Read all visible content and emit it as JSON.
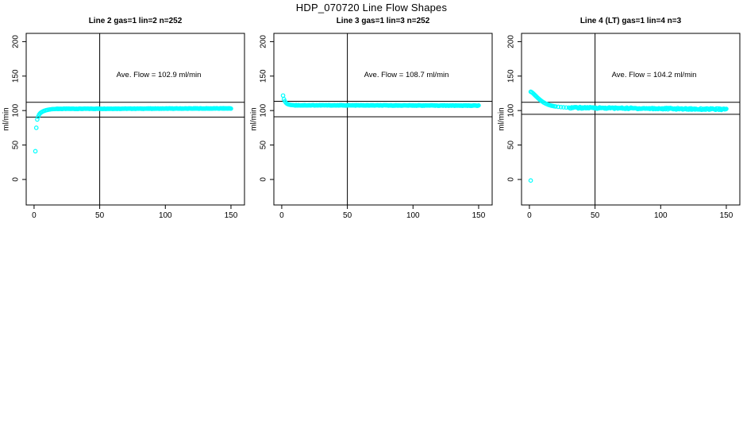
{
  "chart_data": {
    "type": "scatter",
    "title": "HDP_070720  Line Flow Shapes",
    "ylabel": "ml/min",
    "point_color": "#00FFFF",
    "axis_color": "#000000",
    "background": "#ffffff",
    "x_ticks": [
      0,
      50,
      100,
      150
    ],
    "y_ticks": [
      0,
      50,
      100,
      150,
      200
    ],
    "x_range": [
      -6,
      160.3
    ],
    "y_range": [
      -37,
      212
    ],
    "vline_x": 50,
    "legend": "none",
    "grid": "off",
    "panels": [
      {
        "title": "Line 2 gas=1 lin=2 n=252",
        "annotation": "Ave. Flow =  102.9  ml/min",
        "ave_flow": 102.9,
        "n": 252,
        "shape": "rise-to-plateau",
        "ref_lines": [
          112,
          90.5
        ],
        "head_points": [
          [
            1,
            41
          ],
          [
            1.7,
            75
          ],
          [
            2.4,
            87
          ],
          [
            3.1,
            91
          ],
          [
            3.8,
            94
          ],
          [
            4.5,
            95.8
          ],
          [
            5.2,
            97
          ],
          [
            6,
            98
          ],
          [
            6.8,
            98.8
          ],
          [
            7.6,
            99.5
          ],
          [
            8.4,
            100
          ],
          [
            9.2,
            100.5
          ],
          [
            10,
            100.9
          ],
          [
            11,
            101.3
          ],
          [
            12,
            101.6
          ],
          [
            13,
            101.9
          ],
          [
            14,
            102.1
          ],
          [
            15,
            102.2
          ],
          [
            16,
            102.3
          ],
          [
            17,
            102.4
          ]
        ],
        "plateau": {
          "x0": 17.6,
          "x1": 150,
          "y0": 102.5,
          "y1": 103.1,
          "n": 225,
          "jitter": 0.3
        }
      },
      {
        "title": "Line 3 gas=1 lin=3 n=252",
        "annotation": "Ave. Flow =  108.7  ml/min",
        "ave_flow": 108.7,
        "n": 252,
        "shape": "decay-to-plateau",
        "ref_lines": [
          113.5,
          91
        ],
        "head_points": [
          [
            1,
            121.8
          ],
          [
            1.7,
            116.5
          ],
          [
            2.4,
            113.5
          ],
          [
            3.1,
            111.5
          ],
          [
            3.8,
            110.2
          ],
          [
            4.5,
            109.4
          ],
          [
            5.2,
            108.9
          ],
          [
            6,
            108.5
          ],
          [
            6.8,
            108.2
          ],
          [
            7.6,
            108
          ],
          [
            8.4,
            107.9
          ],
          [
            9.2,
            107.8
          ]
        ],
        "plateau": {
          "x0": 9.8,
          "x1": 150,
          "y0": 107.7,
          "y1": 107.2,
          "n": 233,
          "jitter": 0.35
        }
      },
      {
        "title": "Line 4 (LT) gas=1 lin=4 n=3",
        "annotation": "Ave. Flow =  104.2  ml/min",
        "ave_flow": 104.2,
        "n": 3,
        "shape": "decay-to-plateau-with-outlier",
        "ref_lines": [
          112,
          94.5
        ],
        "head_points": [
          [
            1,
            -1.5
          ],
          [
            1,
            127.3
          ],
          [
            1.7,
            126.6
          ],
          [
            2.4,
            125.6
          ],
          [
            3.1,
            124.4
          ],
          [
            3.8,
            123.1
          ],
          [
            4.5,
            121.8
          ],
          [
            5.2,
            120.5
          ],
          [
            6,
            119
          ],
          [
            6.8,
            117.6
          ],
          [
            7.6,
            116.3
          ],
          [
            8.4,
            115
          ],
          [
            9.2,
            113.9
          ],
          [
            10,
            112.8
          ],
          [
            11,
            111.6
          ],
          [
            12,
            110.5
          ],
          [
            13,
            109.6
          ],
          [
            14,
            108.8
          ],
          [
            15,
            108.1
          ],
          [
            16,
            107.5
          ],
          [
            17,
            107
          ],
          [
            18,
            106.6
          ],
          [
            19,
            106.2
          ],
          [
            20,
            105.9
          ],
          [
            22,
            105.4
          ],
          [
            24,
            105
          ],
          [
            26,
            104.7
          ],
          [
            28,
            104.5
          ],
          [
            30,
            104.3
          ]
        ],
        "plateau": {
          "x0": 31,
          "x1": 150,
          "y0": 104.2,
          "y1": 101.8,
          "n": 190,
          "jitter": 1.1
        }
      }
    ]
  }
}
